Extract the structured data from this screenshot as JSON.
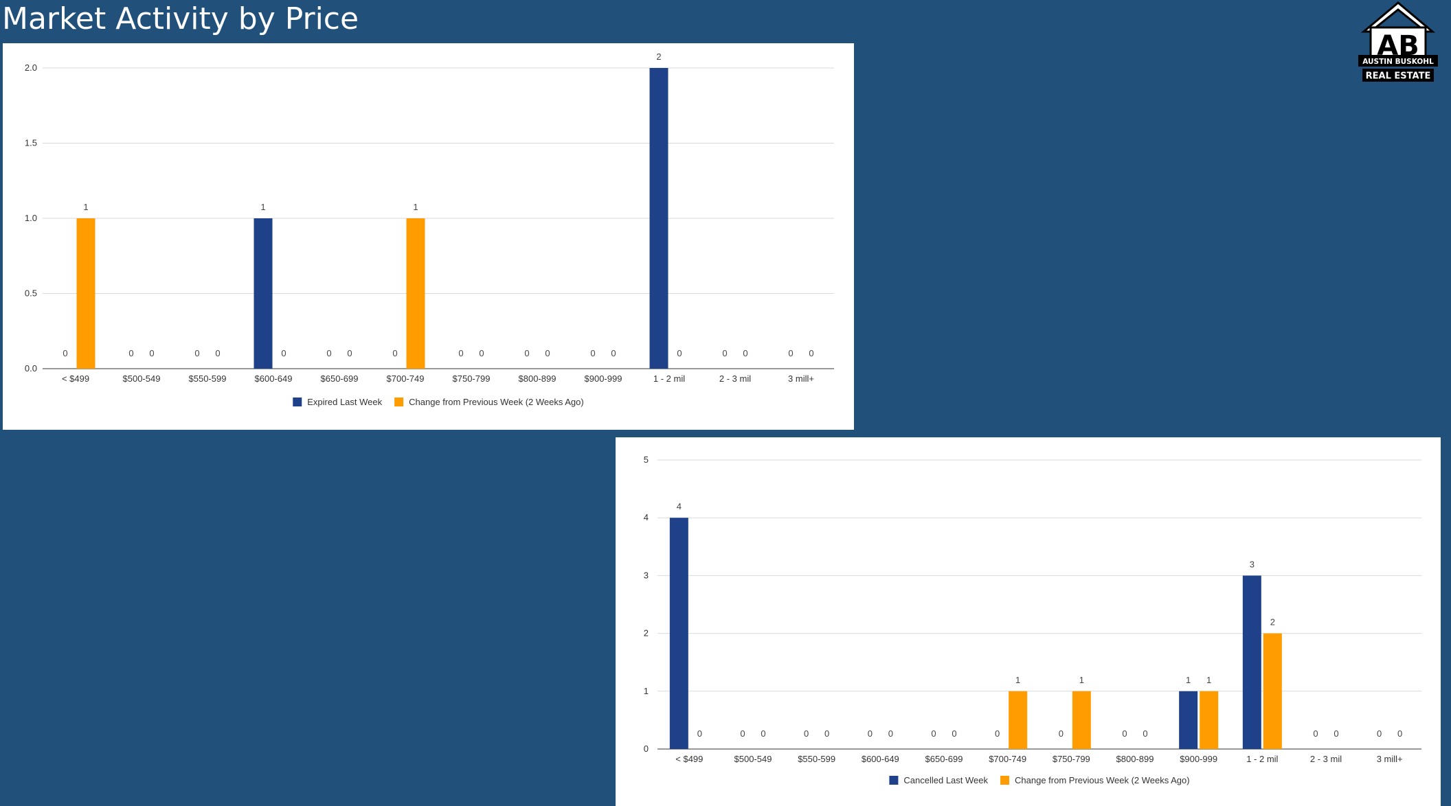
{
  "page": {
    "title": "Market Activity by Price"
  },
  "logo": {
    "line1": "AUSTIN BUSKOHL",
    "line2": "REAL ESTATE",
    "monogram": "AB"
  },
  "colors": {
    "background": "#21507a",
    "series_primary": "#1f418a",
    "series_secondary": "#ff9d00",
    "gridline": "#d9d9d9",
    "axis_text": "#333333"
  },
  "chart_data": [
    {
      "type": "bar",
      "categories": [
        "< $499",
        "$500-549",
        "$550-599",
        "$600-649",
        "$650-699",
        "$700-749",
        "$750-799",
        "$800-899",
        "$900-999",
        "1 - 2 mil",
        "2 - 3 mil",
        "3 mill+"
      ],
      "series": [
        {
          "name": "Expired Last Week",
          "values": [
            0,
            0,
            0,
            1,
            0,
            0,
            0,
            0,
            0,
            2,
            0,
            0
          ]
        },
        {
          "name": "Change from Previous Week (2 Weeks Ago)",
          "values": [
            1,
            0,
            0,
            0,
            0,
            1,
            0,
            0,
            0,
            0,
            0,
            0
          ]
        }
      ],
      "y_ticks": [
        "0.0",
        "0.5",
        "1.0",
        "1.5",
        "2.0"
      ],
      "ylim": [
        0,
        2
      ],
      "grid": true,
      "legend": "bottom",
      "data_labels": true
    },
    {
      "type": "bar",
      "categories": [
        "< $499",
        "$500-549",
        "$550-599",
        "$600-649",
        "$650-699",
        "$700-749",
        "$750-799",
        "$800-899",
        "$900-999",
        "1 - 2 mil",
        "2 - 3 mil",
        "3 mill+"
      ],
      "series": [
        {
          "name": "Cancelled Last Week",
          "values": [
            4,
            0,
            0,
            0,
            0,
            0,
            0,
            0,
            1,
            3,
            0,
            0
          ]
        },
        {
          "name": "Change from Previous Week (2 Weeks Ago)",
          "values": [
            0,
            0,
            0,
            0,
            0,
            1,
            1,
            0,
            1,
            2,
            0,
            0
          ]
        }
      ],
      "y_ticks": [
        "0",
        "1",
        "2",
        "3",
        "4",
        "5"
      ],
      "ylim": [
        0,
        5
      ],
      "grid": true,
      "legend": "bottom",
      "data_labels": true
    }
  ]
}
